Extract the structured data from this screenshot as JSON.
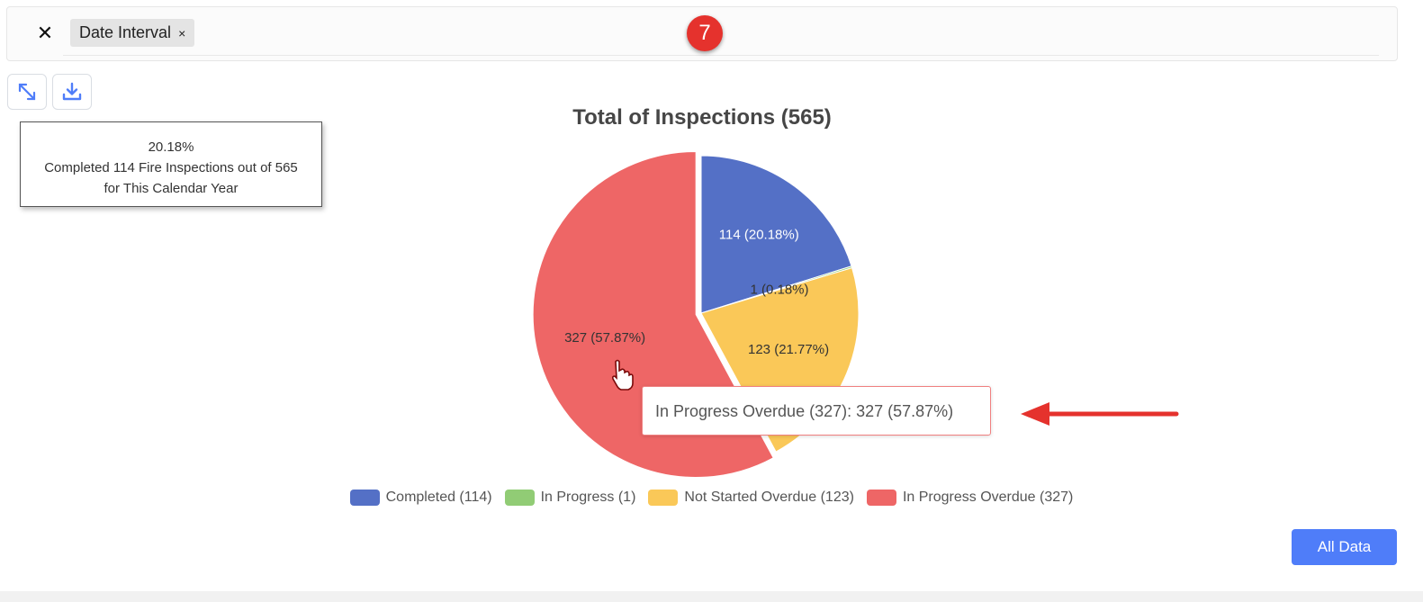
{
  "filter": {
    "close_symbol": "✕",
    "chip_label": "Date Interval",
    "chip_close": "×",
    "step_badge": "7"
  },
  "toolbar": {
    "expand_icon": "expand-icon",
    "download_icon": "download-icon"
  },
  "info_tooltip": {
    "line1": "20.18%",
    "line2": "Completed 114 Fire Inspections out of 565",
    "line3": "for This Calendar Year"
  },
  "hover_tooltip": {
    "text": "In Progress Overdue (327): 327 (57.87%)"
  },
  "legend": [
    {
      "label": "Completed (114)",
      "color": "#5470c6"
    },
    {
      "label": "In Progress (1)",
      "color": "#91cc75"
    },
    {
      "label": "Not Started Overdue (123)",
      "color": "#fac858"
    },
    {
      "label": "In Progress Overdue (327)",
      "color": "#ee6666"
    }
  ],
  "buttons": {
    "all_data": "All Data"
  },
  "chart_data": {
    "type": "pie",
    "title": "Total of Inspections (565)",
    "total": 565,
    "series": [
      {
        "name": "Completed",
        "value": 114,
        "percent": 20.18,
        "label": "114 (20.18%)",
        "color": "#5470c6"
      },
      {
        "name": "In Progress",
        "value": 1,
        "percent": 0.18,
        "label": "1 (0.18%)",
        "color": "#91cc75"
      },
      {
        "name": "Not Started Overdue",
        "value": 123,
        "percent": 21.77,
        "label": "123 (21.77%)",
        "color": "#fac858"
      },
      {
        "name": "In Progress Overdue",
        "value": 327,
        "percent": 57.87,
        "label": "327 (57.87%)",
        "color": "#ee6666",
        "highlighted": true
      }
    ],
    "legend_position": "bottom"
  }
}
